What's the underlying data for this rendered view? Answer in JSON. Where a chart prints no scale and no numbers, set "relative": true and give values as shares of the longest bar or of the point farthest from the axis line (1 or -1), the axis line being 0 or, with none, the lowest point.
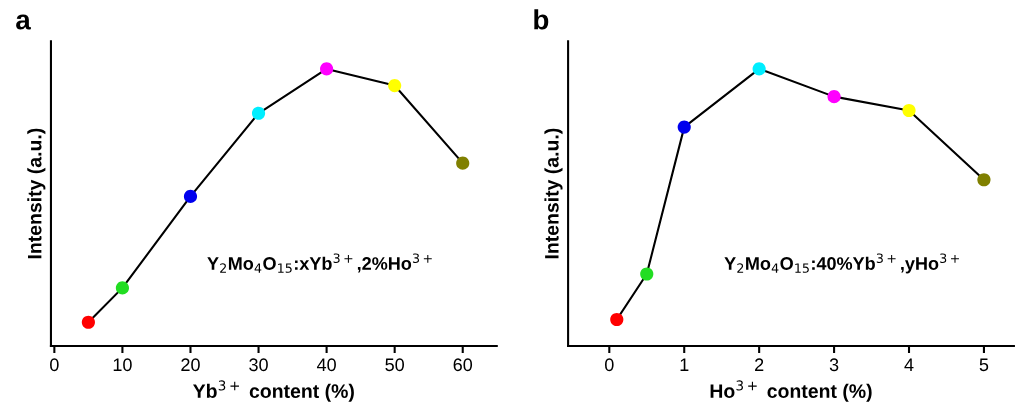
{
  "chart_data": [
    {
      "type": "line",
      "title": "a",
      "xlabel": "Yb$^{3+}$ content (%)",
      "ylabel": "Intensity (a.u.)",
      "relative": true,
      "tick_labels": "x",
      "marker": "circle",
      "line_style": "solid",
      "grid": false,
      "legend": false,
      "x": [
        5,
        10,
        20,
        30,
        40,
        50,
        60
      ],
      "xlim": [
        -0.5,
        65
      ],
      "xticks": [
        0,
        10,
        20,
        30,
        40,
        50,
        60
      ],
      "series": [
        {
          "color": "#000000",
          "colors": [
            "#ff0000",
            "#22dd22",
            "#0000ee",
            "#00eeff",
            "#ff00ff",
            "#ffff00",
            "#808000"
          ],
          "values": [
            0.086,
            0.21,
            0.54,
            0.84,
            1,
            0.94,
            0.66
          ]
        }
      ],
      "annotations": [
        "Y$_{2}$Mo$_{4}$O$_{15}$:xYb$^{3+}$,2%Ho$^{3+}$"
      ]
    },
    {
      "type": "line",
      "title": "b",
      "xlabel": "Ho$^{3+}$ content (%)",
      "ylabel": "Intensity (a.u.)",
      "relative": true,
      "tick_labels": "x",
      "marker": "circle",
      "line_style": "solid",
      "grid": false,
      "legend": false,
      "x": [
        0.1,
        0.5,
        1,
        2,
        3,
        4,
        5
      ],
      "xlim": [
        -0.55,
        5.4
      ],
      "xticks": [
        0,
        1,
        2,
        3,
        4,
        5
      ],
      "series": [
        {
          "color": "#000000",
          "colors": [
            "#ff0000",
            "#22dd22",
            "#0000ee",
            "#00eeff",
            "#ff00ff",
            "#ffff00",
            "#808000"
          ],
          "values": [
            0.096,
            0.26,
            0.79,
            1,
            0.9,
            0.85,
            0.6
          ]
        }
      ],
      "annotations": [
        "Y$_{2}$Mo$_{4}$O$_{15}$:40%Yb$^{3+}$,yHo$^{3+}$"
      ]
    }
  ]
}
